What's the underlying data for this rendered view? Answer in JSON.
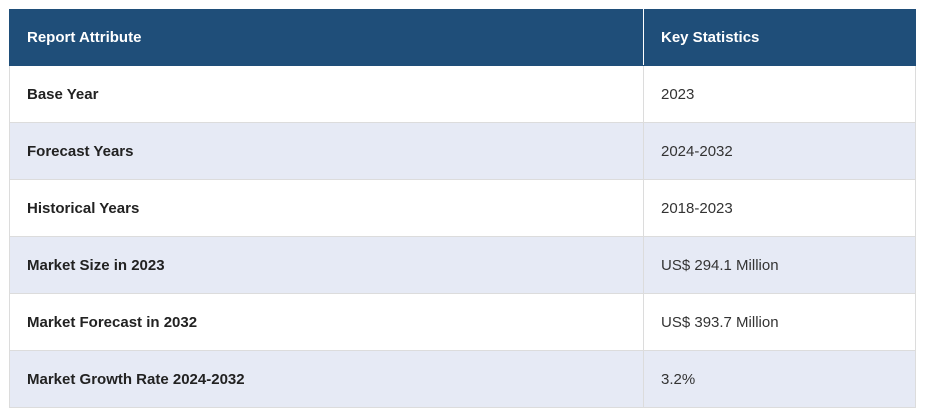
{
  "table": {
    "headers": [
      "Report Attribute",
      "Key Statistics"
    ],
    "rows": [
      {
        "attribute": "Base Year",
        "value": "2023"
      },
      {
        "attribute": "Forecast Years",
        "value": "2024-2032"
      },
      {
        "attribute": "Historical Years",
        "value": "2018-2023"
      },
      {
        "attribute": "Market Size in 2023",
        "value": "US$ 294.1 Million"
      },
      {
        "attribute": "Market Forecast in 2032",
        "value": "US$ 393.7 Million"
      },
      {
        "attribute": "Market Growth Rate 2024-2032",
        "value": "3.2%"
      }
    ]
  },
  "colors": {
    "header_bg": "#1f4e79",
    "header_text": "#ffffff",
    "stripe_bg": "#e6eaf5",
    "row_bg": "#ffffff"
  }
}
